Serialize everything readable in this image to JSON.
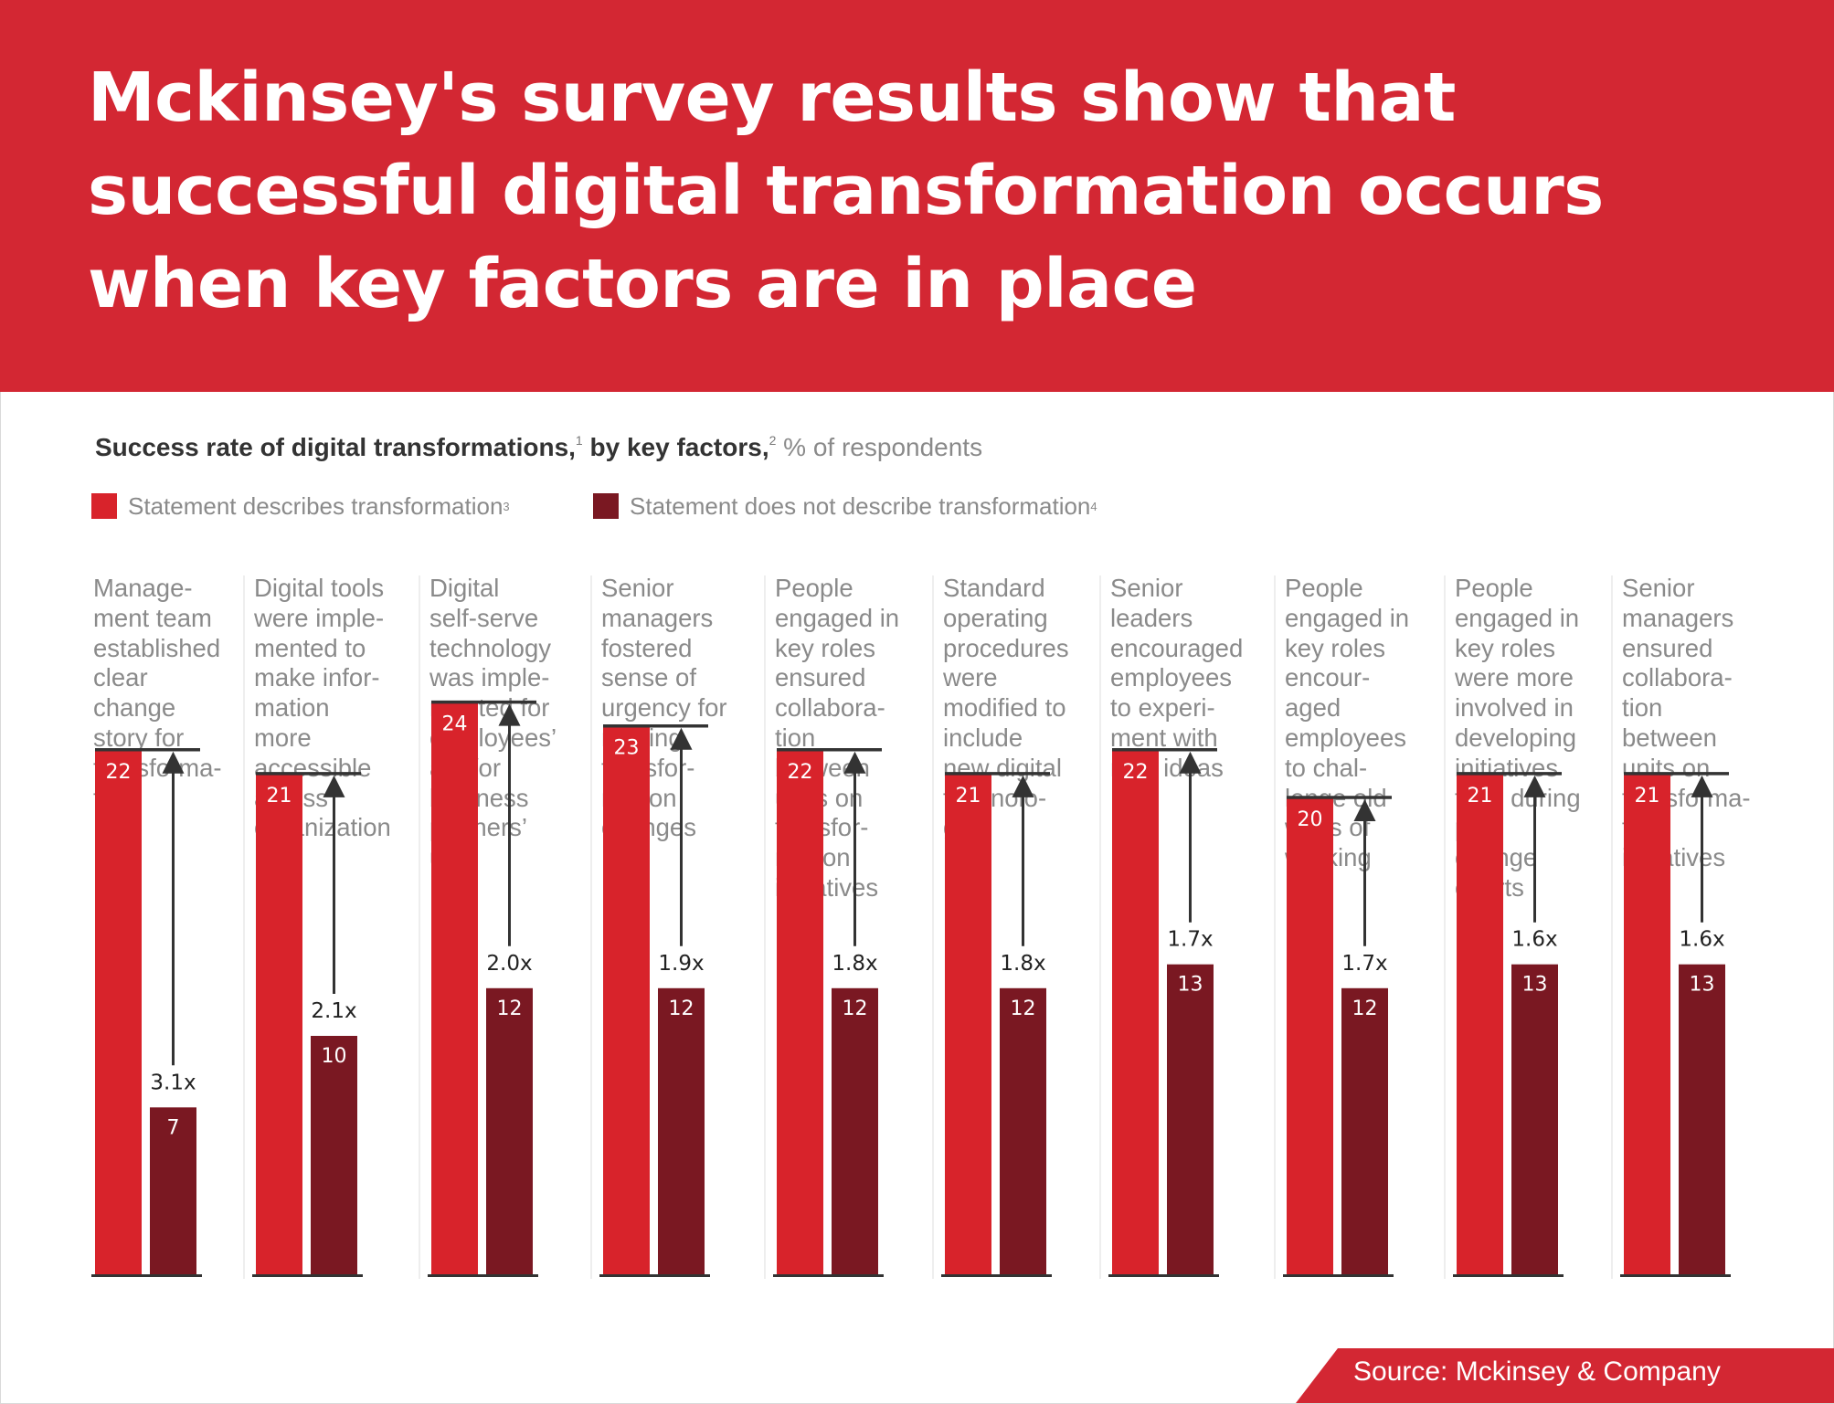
{
  "headline": "Mckinsey's survey results show that successful digital transformation occurs when key factors are in place",
  "subtitle": {
    "bold": "Success rate of digital transformations,",
    "note1": "1",
    "bold2": " by key factors,",
    "note2": "2",
    "unit": " % of respondents"
  },
  "legend": [
    {
      "label": "Statement describes transformation",
      "note": "3",
      "color": "#d8232b"
    },
    {
      "label": "Statement does not describe transformation",
      "note": "4",
      "color": "#7a1822"
    }
  ],
  "source": "Source: Mckinsey & Company",
  "colors": {
    "banner": "#d32733",
    "describes": "#d8232b",
    "not_describes": "#7a1822",
    "arrow": "#333333"
  },
  "chart_data": {
    "type": "bar",
    "categories": [
      "Manage-\nment team\nestablished\nclear\nchange\nstory for\ntransforma-\ntion",
      "Digital tools\nwere imple-\nmented to\nmake infor-\nmation\nmore\naccessible\nacross\norganization",
      "Digital\nself-serve\ntechnology\nwas imple-\nmented for\nemployees’\nand/or\nbusiness\npartners’\nuse",
      "Senior\nmanagers\nfostered\nsense of\nurgency for\nmaking\ntransfor-\nmation\nchanges",
      "People\nengaged in\nkey roles\nensured\ncollabora-\ntion\nbetween\nunits on\ntransfor-\nmation\ninitiatives",
      "Standard\noperating\nprocedures\nwere\nmodified to\ninclude\nnew digital\ntechnolo-\ngies",
      "Senior\nleaders\nencouraged\nemployees\nto experi-\nment with\nnew ideas",
      "People\nengaged in\nkey roles\nencour-\naged\nemployees\nto chal-\nlenge old\nways of\nworking",
      "People\nengaged in\nkey roles\nwere more\ninvolved in\ndeveloping\ninitiatives\nthan during\npast\nchange\nefforts",
      "Senior\nmanagers\nensured\ncollabora-\ntion\nbetween\nunits on\ntransforma-\ntion\ninitiatives"
    ],
    "series": [
      {
        "name": "Statement describes transformation",
        "values": [
          22,
          21,
          24,
          23,
          22,
          21,
          22,
          20,
          21,
          21
        ]
      },
      {
        "name": "Statement does not describe transformation",
        "values": [
          7,
          10,
          12,
          12,
          12,
          12,
          13,
          12,
          13,
          13
        ]
      }
    ],
    "multipliers": [
      "3.1x",
      "2.1x",
      "2.0x",
      "1.9x",
      "1.8x",
      "1.8x",
      "1.7x",
      "1.7x",
      "1.6x",
      "1.6x"
    ],
    "ylim": [
      0,
      24
    ]
  }
}
